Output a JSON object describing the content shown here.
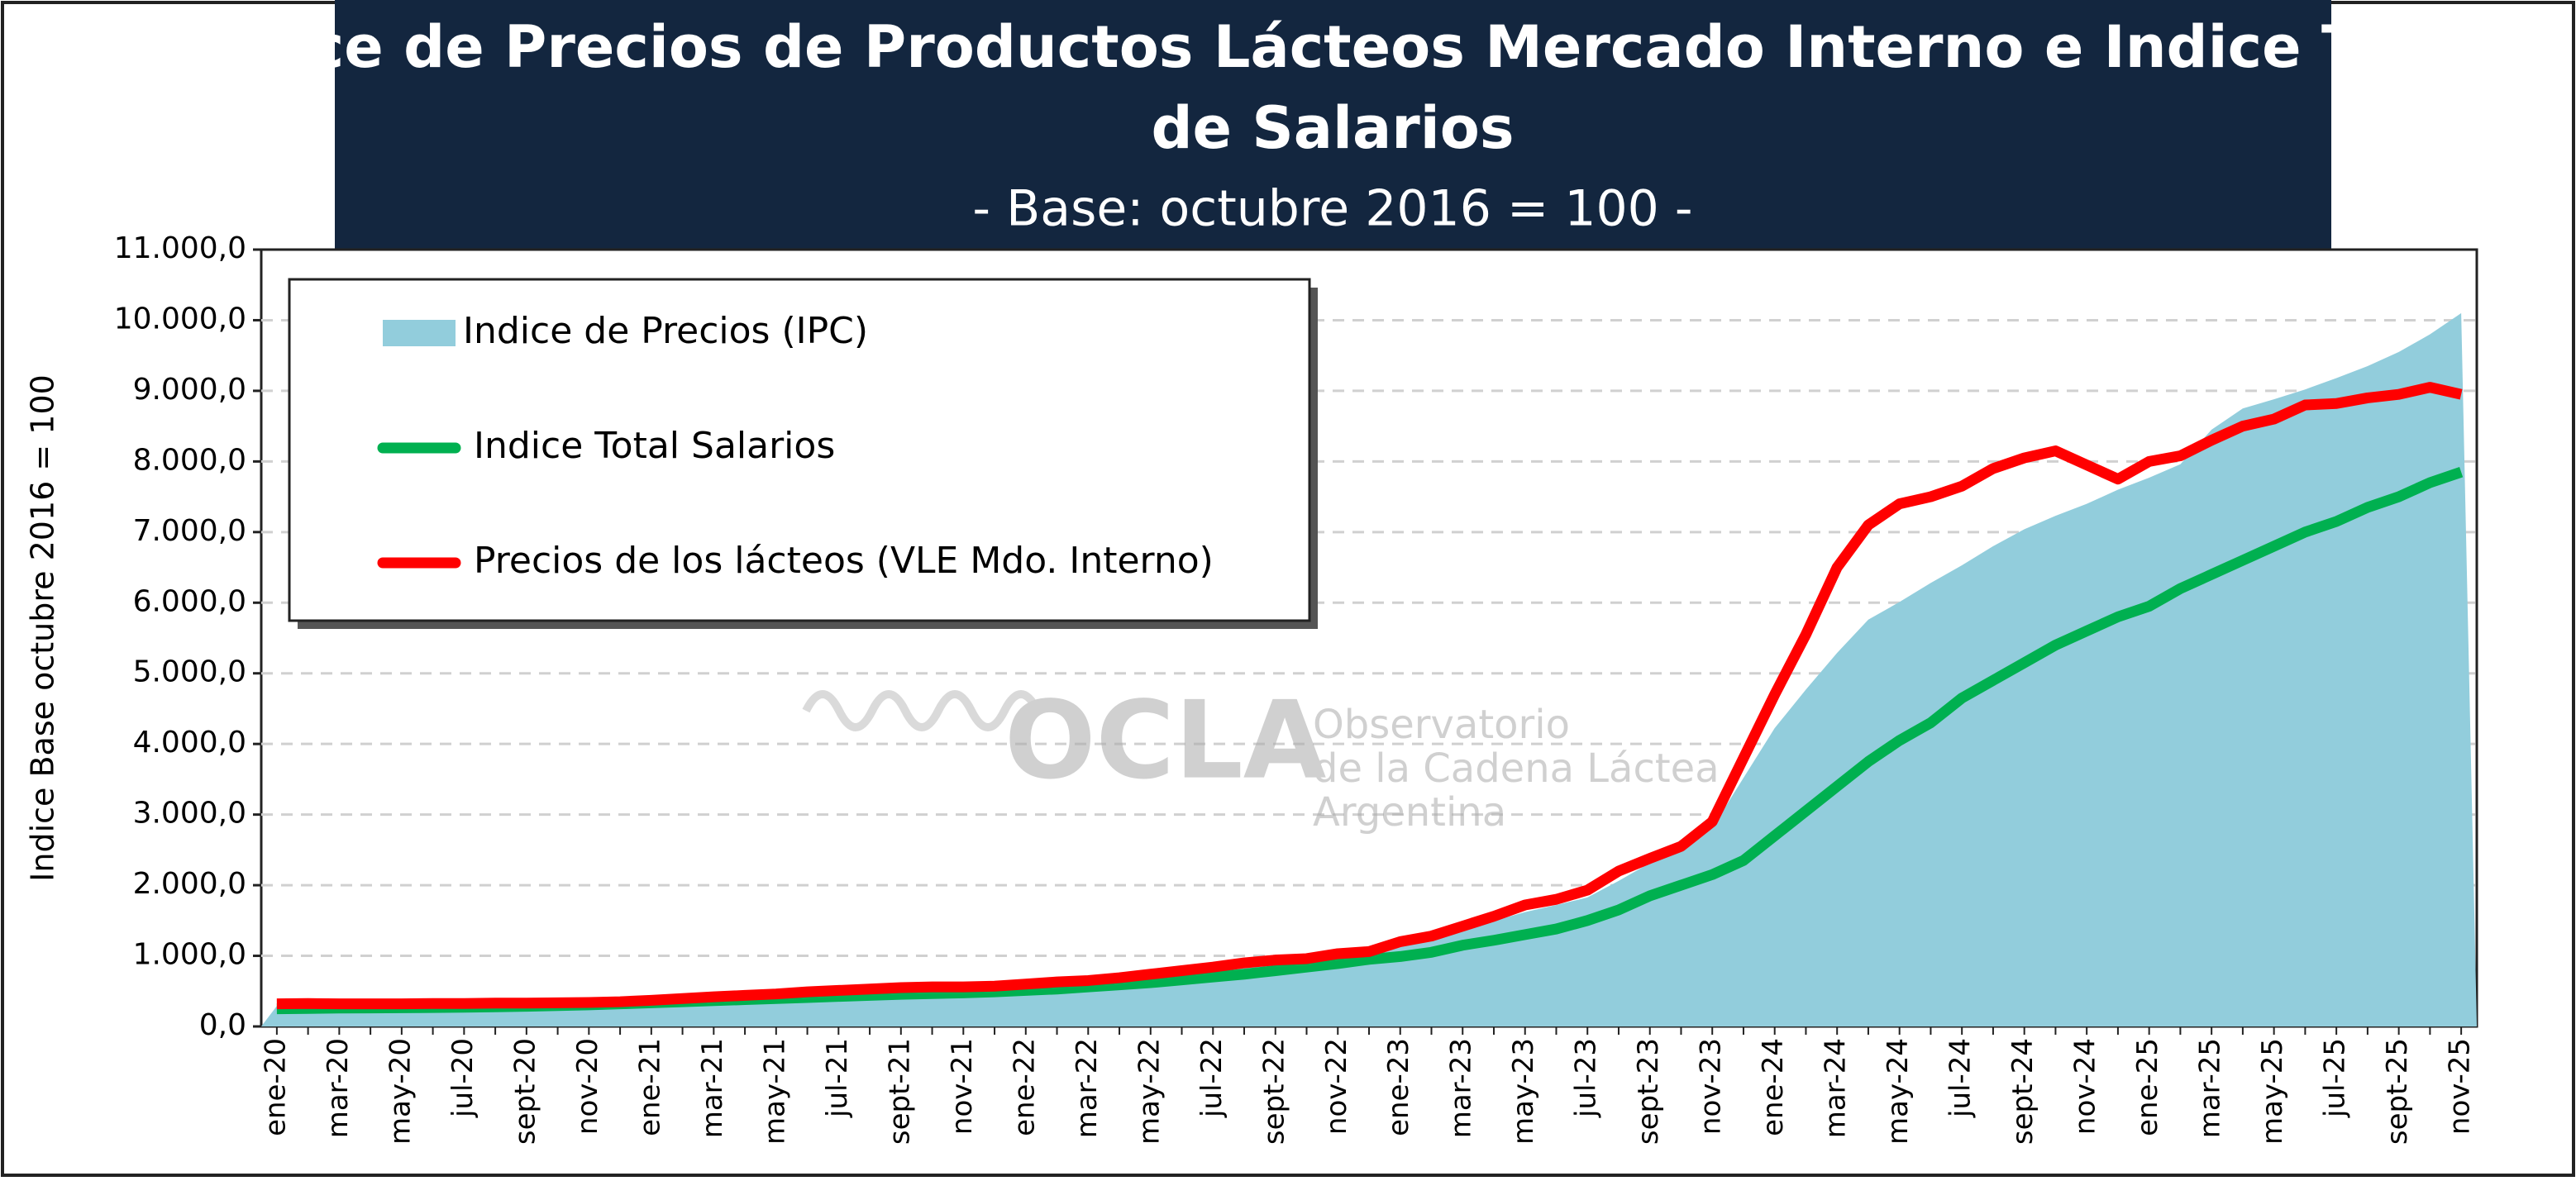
{
  "chart_data": {
    "type": "line",
    "title": "Indice de Precios de Productos Lácteos Mercado Interno e Indice Total",
    "title_line2": "de Salarios",
    "subtitle": "- Base: octubre 2016 = 100 -",
    "ylabel": "Indice Base octubre 2016 = 100",
    "legend": "top-left",
    "grid": true,
    "categories": [
      "ene-20",
      null,
      "mar-20",
      null,
      "may-20",
      null,
      "jul-20",
      null,
      "sept-20",
      null,
      "nov-20",
      null,
      "ene-21",
      null,
      "mar-21",
      null,
      "may-21",
      null,
      "jul-21",
      null,
      "sept-21",
      null,
      "nov-21",
      null,
      "ene-22",
      null,
      "mar-22",
      null,
      "may-22",
      null,
      "jul-22",
      null,
      "sept-22",
      null,
      "nov-22",
      null,
      "ene-23",
      null,
      "mar-23",
      null,
      "may-23",
      null,
      "jul-23",
      null,
      "sept-23",
      null,
      "nov-23",
      null,
      "ene-24",
      null,
      "mar-24",
      null,
      "may-24",
      null,
      "jul-24",
      null,
      "sept-24",
      null,
      "nov-24",
      null,
      "ene-25",
      null,
      "mar-25",
      null,
      "may-25",
      null,
      "jul-25",
      null,
      "sept-25",
      null,
      "nov-25"
    ],
    "series": [
      {
        "name": "Indice de Precios (IPC)",
        "kind": "area",
        "color": "#92cddc",
        "values": [
          290,
          298,
          308,
          313,
          318,
          325,
          331,
          340,
          350,
          361,
          374,
          389,
          404,
          418,
          438,
          456,
          471,
          486,
          501,
          513,
          531,
          549,
          562,
          584,
          606,
          633,
          676,
          716,
          753,
          792,
          851,
          912,
          968,
          1030,
          1081,
          1135,
          1205,
          1284,
          1381,
          1495,
          1619,
          1720,
          1827,
          2061,
          2314,
          2495,
          2814,
          3520,
          4224,
          4770,
          5290,
          5760,
          6010,
          6280,
          6530,
          6800,
          7040,
          7230,
          7400,
          7600,
          7770,
          7960,
          8450,
          8750,
          8880,
          9020,
          9180,
          9350,
          9550,
          9800,
          10100
        ]
      },
      {
        "name": "Indice Total Salarios",
        "kind": "line",
        "color": "#00b050",
        "values": [
          250,
          255,
          260,
          262,
          265,
          268,
          272,
          278,
          285,
          295,
          305,
          320,
          335,
          350,
          365,
          380,
          395,
          410,
          425,
          440,
          455,
          465,
          475,
          490,
          510,
          530,
          560,
          590,
          620,
          660,
          700,
          740,
          790,
          840,
          890,
          950,
          990,
          1050,
          1150,
          1220,
          1300,
          1380,
          1500,
          1650,
          1850,
          2000,
          2150,
          2350,
          2700,
          3050,
          3400,
          3750,
          4050,
          4300,
          4650,
          4900,
          5150,
          5400,
          5600,
          5800,
          5950,
          6200,
          6400,
          6600,
          6800,
          7000,
          7150,
          7350,
          7500,
          7700,
          7850
        ]
      },
      {
        "name": "Precios de los lácteos (VLE Mdo. Interno)",
        "kind": "line",
        "color": "#ff0000",
        "values": [
          320,
          325,
          320,
          320,
          320,
          325,
          325,
          330,
          330,
          335,
          340,
          350,
          370,
          395,
          420,
          440,
          460,
          490,
          510,
          530,
          550,
          560,
          560,
          570,
          600,
          630,
          650,
          690,
          740,
          790,
          840,
          900,
          940,
          960,
          1030,
          1060,
          1200,
          1280,
          1420,
          1560,
          1720,
          1800,
          1930,
          2200,
          2380,
          2550,
          2900,
          3800,
          4700,
          5550,
          6500,
          7100,
          7400,
          7500,
          7650,
          7900,
          8050,
          8150,
          7950,
          7750,
          8000,
          8080,
          8300,
          8500,
          8600,
          8800,
          8820,
          8900,
          8950,
          9050,
          8950
        ]
      }
    ],
    "ylim": [
      0,
      11000
    ],
    "yticks": [
      {
        "value": 0,
        "label": "0,0"
      },
      {
        "value": 1000,
        "label": "1.000,0"
      },
      {
        "value": 2000,
        "label": "2.000,0"
      },
      {
        "value": 3000,
        "label": "3.000,0"
      },
      {
        "value": 4000,
        "label": "4.000,0"
      },
      {
        "value": 5000,
        "label": "5.000,0"
      },
      {
        "value": 6000,
        "label": "6.000,0"
      },
      {
        "value": 7000,
        "label": "7.000,0"
      },
      {
        "value": 8000,
        "label": "8.000,0"
      },
      {
        "value": 9000,
        "label": "9.000,0"
      },
      {
        "value": 10000,
        "label": "10.000,0"
      },
      {
        "value": 11000,
        "label": "11.000,0"
      }
    ],
    "watermark": {
      "logo": "OCLA",
      "line1": "Observatorio",
      "line2": "de la Cadena Láctea",
      "line3": "Argentina"
    }
  }
}
